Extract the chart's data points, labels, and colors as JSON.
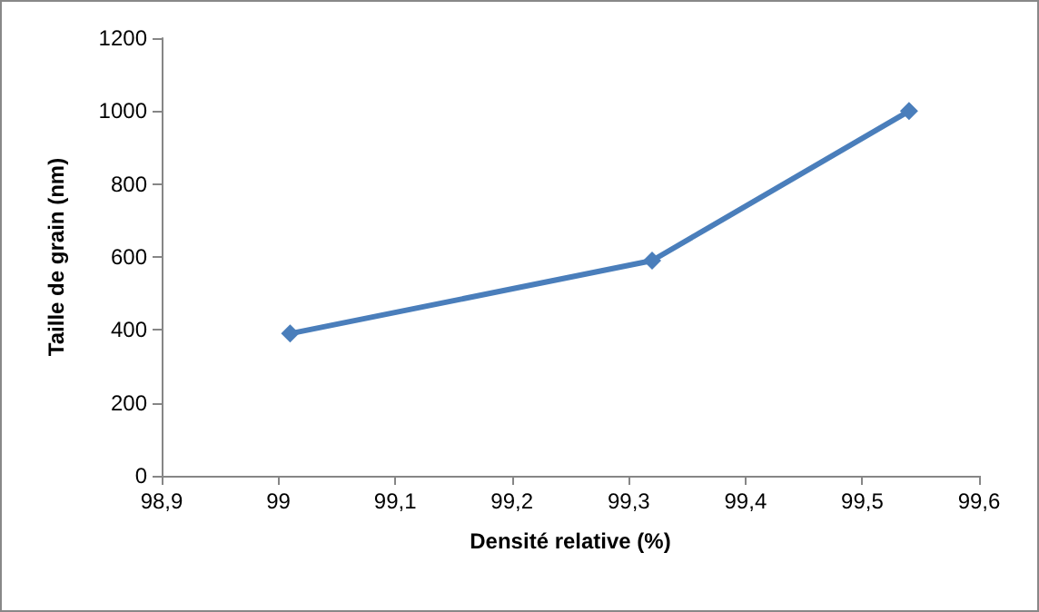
{
  "chart_data": {
    "type": "line",
    "xlabel": "Densité relative (%)",
    "ylabel": "Taille de grain (nm)",
    "series": [
      {
        "color": "#4a7ebb",
        "x": [
          99.01,
          99.32,
          99.54
        ],
        "values": [
          390,
          590,
          1000
        ]
      }
    ],
    "xlim": [
      98.9,
      99.6
    ],
    "xticks": [
      {
        "value": 98.9,
        "label": "98,9"
      },
      99,
      {
        "value": 99.1,
        "label": "99,1"
      },
      {
        "value": 99.2,
        "label": "99,2"
      },
      {
        "value": 99.3,
        "label": "99,3"
      },
      {
        "value": 99.4,
        "label": "99,4"
      },
      {
        "value": 99.5,
        "label": "99,5"
      },
      {
        "value": 99.6,
        "label": "99,6"
      }
    ],
    "ylim": [
      0,
      1200
    ],
    "yticks": [
      0,
      200,
      400,
      600,
      800,
      1000,
      1200
    ],
    "grid": false,
    "marker": "diamond",
    "line_style": "solid"
  }
}
